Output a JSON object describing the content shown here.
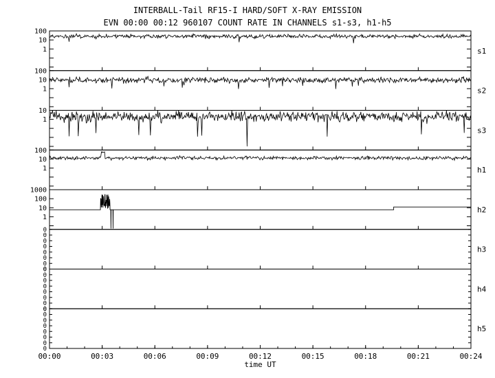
{
  "chart_data": {
    "type": "line",
    "title": "INTERBALL-Tail RF15-I HARD/SOFT X-RAY EMISSION",
    "subtitle": "EVN 00:00 00:12 960107  COUNT RATE IN CHANNELS s1-s3, h1-h5",
    "xlabel": "time UT",
    "x_range_minutes": [
      0,
      24
    ],
    "x_ticks": [
      "00:00",
      "00:03",
      "00:06",
      "00:09",
      "00:12",
      "00:15",
      "00:18",
      "00:21",
      "00:24"
    ],
    "legend": "none",
    "grid": "off",
    "layout": "8 stacked log-scale panels sharing the time axis",
    "panels": [
      {
        "label": "s1",
        "scale": "log",
        "ymax": 100,
        "decades_shown": 4.4,
        "ytick_labels": [
          [
            100,
            "100"
          ],
          [
            10,
            "10"
          ],
          [
            1,
            "1"
          ]
        ],
        "signal": {
          "kind": "noise",
          "seed": 11,
          "baseline": 25,
          "noise_dec": 0.22,
          "down_prob": 0.003,
          "down_value": 5,
          "description": "steady noisy count rate ~20-40 counts"
        }
      },
      {
        "label": "s2",
        "scale": "log",
        "ymax": 100,
        "decades_shown": 4.4,
        "ytick_labels": [
          [
            100,
            "100"
          ],
          [
            10,
            "10"
          ],
          [
            1,
            "1"
          ]
        ],
        "signal": {
          "kind": "noise",
          "seed": 22,
          "baseline": 9,
          "noise_dec": 0.3,
          "down_prob": 0.01,
          "down_value": 1.5,
          "description": "steady noisy count rate ~6-15 counts with occasional dips"
        }
      },
      {
        "label": "s3",
        "scale": "log",
        "ymax": 10,
        "decades_shown": 4.4,
        "ytick_labels": [
          [
            10,
            "10"
          ],
          [
            1,
            "1"
          ]
        ],
        "signal": {
          "kind": "noise",
          "seed": 33,
          "baseline": 2,
          "noise_dec": 0.6,
          "down_prob": 0.02,
          "down_value": 0.02,
          "down_spikes": [
            {
              "t": 11.25,
              "value": 0.001
            }
          ],
          "description": "strongly fluctuating rate ~1-8 counts, frequent deep downward spikes, one very deep spike near 00:11"
        }
      },
      {
        "label": "h1",
        "scale": "log",
        "ymax": 100,
        "decades_shown": 4.4,
        "ytick_labels": [
          [
            100,
            "100"
          ],
          [
            10,
            "10"
          ],
          [
            1,
            "1"
          ]
        ],
        "signal": {
          "kind": "noise",
          "seed": 44,
          "baseline": 13,
          "noise_dec": 0.2,
          "up_spikes": [
            {
              "t": 3.05,
              "width": 0.09,
              "value": 55
            }
          ],
          "description": "steady noisy rate ~10-18 counts with small burst near 00:03"
        }
      },
      {
        "label": "h2",
        "scale": "log",
        "ymax": 1000,
        "decades_shown": 4.4,
        "ytick_labels": [
          [
            1000,
            "1000"
          ],
          [
            100,
            "100"
          ],
          [
            10,
            "10"
          ],
          [
            1,
            "1"
          ]
        ],
        "signal": {
          "kind": "burst",
          "seed": 55,
          "flat_level": 6,
          "burst_start": 2.9,
          "burst_end": 3.45,
          "burst_log_min": 0.9,
          "burst_log_span": 1.6,
          "drops": [
            3.5,
            3.62
          ],
          "drop_value": 0.05,
          "step_time": 19.6,
          "step_level": 12,
          "description": "flat ~6 counts; intense burst to ~100-400 counts at 00:03 followed by two dropouts; step up to ~12 counts near 00:20"
        }
      },
      {
        "label": "h3",
        "scale": "linear",
        "zero_labels": 8,
        "signal": {
          "kind": "none",
          "description": "no counts - axis shows column of zeros"
        }
      },
      {
        "label": "h4",
        "scale": "linear",
        "zero_labels": 8,
        "signal": {
          "kind": "none",
          "description": "no counts - axis shows column of zeros"
        }
      },
      {
        "label": "h5",
        "scale": "linear",
        "zero_labels": 8,
        "signal": {
          "kind": "none",
          "description": "no counts - axis shows column of zeros"
        }
      }
    ]
  }
}
